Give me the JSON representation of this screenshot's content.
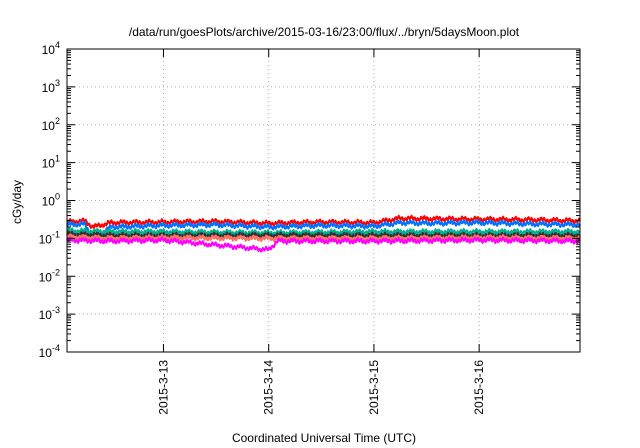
{
  "chart_data": {
    "type": "line",
    "title": "/data/run/goesPlots/archive/2015-03-16/23:00/flux/../bryn/5daysMoon.plot",
    "xlabel": "Coordinated Universal Time (UTC)",
    "ylabel": "cGy/day",
    "yscale": "log",
    "ylim": [
      0.0001,
      10000
    ],
    "y_ticks": [
      {
        "value": 0.0001,
        "base": "10",
        "exp": "-4"
      },
      {
        "value": 0.001,
        "base": "10",
        "exp": "-3"
      },
      {
        "value": 0.01,
        "base": "10",
        "exp": "-2"
      },
      {
        "value": 0.1,
        "base": "10",
        "exp": "-1"
      },
      {
        "value": 1,
        "base": "10",
        "exp": "0"
      },
      {
        "value": 10,
        "base": "10",
        "exp": "1"
      },
      {
        "value": 100,
        "base": "10",
        "exp": "2"
      },
      {
        "value": 1000,
        "base": "10",
        "exp": "3"
      },
      {
        "value": 10000,
        "base": "10",
        "exp": "4"
      }
    ],
    "xlim": [
      "2015-03-12T02:00",
      "2015-03-16T23:00"
    ],
    "x_ticks": [
      "2015-3-13",
      "2015-3-14",
      "2015-3-15",
      "2015-3-16"
    ],
    "grid": true,
    "series": [
      {
        "color": "#ff0000",
        "points": [
          [
            "2015-03-12T02:00",
            0.27
          ],
          [
            "2015-03-12T06:00",
            0.29
          ],
          [
            "2015-03-12T08:00",
            0.2
          ],
          [
            "2015-03-12T12:00",
            0.26
          ],
          [
            "2015-03-13T00:00",
            0.27
          ],
          [
            "2015-03-13T12:00",
            0.28
          ],
          [
            "2015-03-14T00:00",
            0.25
          ],
          [
            "2015-03-14T12:00",
            0.27
          ],
          [
            "2015-03-15T00:00",
            0.26
          ],
          [
            "2015-03-15T06:00",
            0.34
          ],
          [
            "2015-03-15T12:00",
            0.33
          ],
          [
            "2015-03-16T00:00",
            0.32
          ],
          [
            "2015-03-16T12:00",
            0.31
          ],
          [
            "2015-03-16T23:00",
            0.29
          ]
        ]
      },
      {
        "color": "#0070ff",
        "points": [
          [
            "2015-03-12T02:00",
            0.23
          ],
          [
            "2015-03-12T06:00",
            0.24
          ],
          [
            "2015-03-12T08:00",
            0.1
          ],
          [
            "2015-03-12T12:00",
            0.2
          ],
          [
            "2015-03-13T00:00",
            0.22
          ],
          [
            "2015-03-13T12:00",
            0.23
          ],
          [
            "2015-03-14T00:00",
            0.2
          ],
          [
            "2015-03-14T12:00",
            0.22
          ],
          [
            "2015-03-15T00:00",
            0.21
          ],
          [
            "2015-03-15T06:00",
            0.26
          ],
          [
            "2015-03-15T12:00",
            0.25
          ],
          [
            "2015-03-16T00:00",
            0.26
          ],
          [
            "2015-03-16T12:00",
            0.24
          ],
          [
            "2015-03-16T23:00",
            0.23
          ]
        ]
      },
      {
        "color": "#00b090",
        "points": [
          [
            "2015-03-12T02:00",
            0.16
          ],
          [
            "2015-03-12T12:00",
            0.15
          ],
          [
            "2015-03-13T00:00",
            0.15
          ],
          [
            "2015-03-14T00:00",
            0.14
          ],
          [
            "2015-03-15T00:00",
            0.15
          ],
          [
            "2015-03-16T00:00",
            0.15
          ],
          [
            "2015-03-16T23:00",
            0.15
          ]
        ]
      },
      {
        "color": "#303030",
        "points": [
          [
            "2015-03-12T02:00",
            0.13
          ],
          [
            "2015-03-12T12:00",
            0.12
          ],
          [
            "2015-03-13T00:00",
            0.12
          ],
          [
            "2015-03-14T00:00",
            0.12
          ],
          [
            "2015-03-15T00:00",
            0.12
          ],
          [
            "2015-03-16T00:00",
            0.12
          ],
          [
            "2015-03-16T23:00",
            0.12
          ]
        ]
      },
      {
        "color": "#ff7060",
        "points": [
          [
            "2015-03-12T02:00",
            0.11
          ],
          [
            "2015-03-12T12:00",
            0.1
          ],
          [
            "2015-03-13T00:00",
            0.105
          ],
          [
            "2015-03-14T00:00",
            0.1
          ],
          [
            "2015-03-15T00:00",
            0.1
          ],
          [
            "2015-03-16T00:00",
            0.105
          ],
          [
            "2015-03-16T23:00",
            0.1
          ]
        ]
      },
      {
        "color": "#ff00ff",
        "points": [
          [
            "2015-03-12T02:00",
            0.09
          ],
          [
            "2015-03-12T12:00",
            0.085
          ],
          [
            "2015-03-13T00:00",
            0.09
          ],
          [
            "2015-03-14T00:00",
            0.05
          ],
          [
            "2015-03-14T02:00",
            0.085
          ],
          [
            "2015-03-15T00:00",
            0.085
          ],
          [
            "2015-03-16T00:00",
            0.09
          ],
          [
            "2015-03-16T23:00",
            0.085
          ]
        ]
      }
    ]
  }
}
